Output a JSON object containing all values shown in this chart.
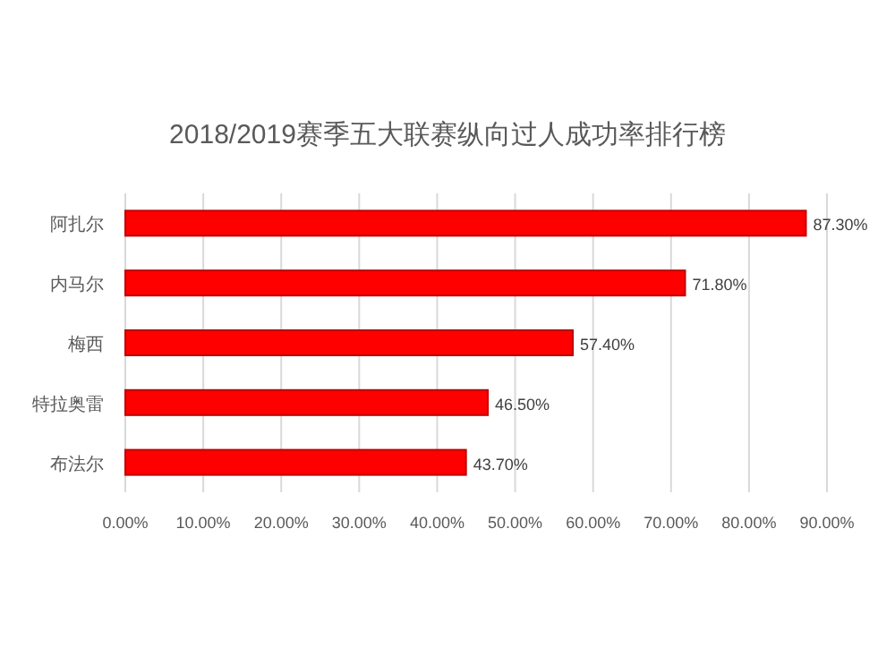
{
  "chart_data": {
    "type": "bar",
    "orientation": "horizontal",
    "title": "2018/2019赛季五大联赛纵向过人成功率排行榜",
    "categories": [
      "阿扎尔",
      "内马尔",
      "梅西",
      "特拉奥雷",
      "布法尔"
    ],
    "values": [
      87.3,
      71.8,
      57.4,
      46.5,
      43.7
    ],
    "value_labels": [
      "87.30%",
      "71.80%",
      "57.40%",
      "46.50%",
      "43.70%"
    ],
    "color": "#ff0000",
    "xlim": [
      0,
      90
    ],
    "xticks": [
      {
        "value": 0,
        "label": "0.00%"
      },
      {
        "value": 10,
        "label": "10.00%"
      },
      {
        "value": 20,
        "label": "20.00%"
      },
      {
        "value": 30,
        "label": "30.00%"
      },
      {
        "value": 40,
        "label": "40.00%"
      },
      {
        "value": 50,
        "label": "50.00%"
      },
      {
        "value": 60,
        "label": "60.00%"
      },
      {
        "value": 70,
        "label": "70.00%"
      },
      {
        "value": 80,
        "label": "80.00%"
      },
      {
        "value": 90,
        "label": "90.00%"
      }
    ],
    "grid": "x"
  }
}
